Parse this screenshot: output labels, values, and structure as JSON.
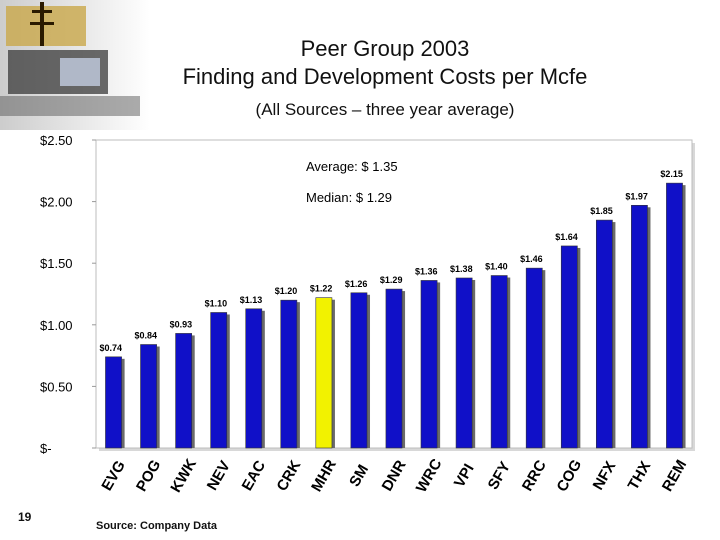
{
  "header": {
    "title_line1": "Peer Group 2003",
    "title_line2": "Finding and Development Costs per Mcfe",
    "subtitle": "(All Sources – three year average)"
  },
  "footer": {
    "page_number": "19",
    "source": "Source:  Company Data"
  },
  "colors": {
    "bar": "#1010c8",
    "highlight_bar": "#f2f200",
    "plot_background": "#ffffff"
  },
  "chart_data": {
    "type": "bar",
    "title": "Peer Group 2003 Finding and Development Costs per Mcfe",
    "subtitle": "(All Sources – three year average)",
    "categories": [
      "EVG",
      "POG",
      "KWK",
      "NEV",
      "EAC",
      "CRK",
      "MHR",
      "SM",
      "DNR",
      "WRC",
      "VPI",
      "SFY",
      "RRC",
      "COG",
      "NFX",
      "THX",
      "REM"
    ],
    "values": [
      0.74,
      0.84,
      0.93,
      1.1,
      1.13,
      1.2,
      1.22,
      1.26,
      1.29,
      1.36,
      1.38,
      1.4,
      1.46,
      1.64,
      1.85,
      1.97,
      2.15
    ],
    "value_labels": [
      "$0.74",
      "$0.84",
      "$0.93",
      "$1.10",
      "$1.13",
      "$1.20",
      "$1.22",
      "$1.26",
      "$1.29",
      "$1.36",
      "$1.38",
      "$1.40",
      "$1.46",
      "$1.64",
      "$1.85",
      "$1.97",
      "$2.15"
    ],
    "highlight_category": "MHR",
    "ylim": [
      0,
      2.5
    ],
    "yticks": [
      0,
      0.5,
      1.0,
      1.5,
      2.0,
      2.5
    ],
    "ytick_labels": [
      "$-",
      "$0.50",
      "$1.00",
      "$1.50",
      "$2.00",
      "$2.50"
    ],
    "annotations": [
      "Average: $ 1.35",
      "Median:  $ 1.29"
    ],
    "grid": false,
    "xlabel": "",
    "ylabel": ""
  }
}
